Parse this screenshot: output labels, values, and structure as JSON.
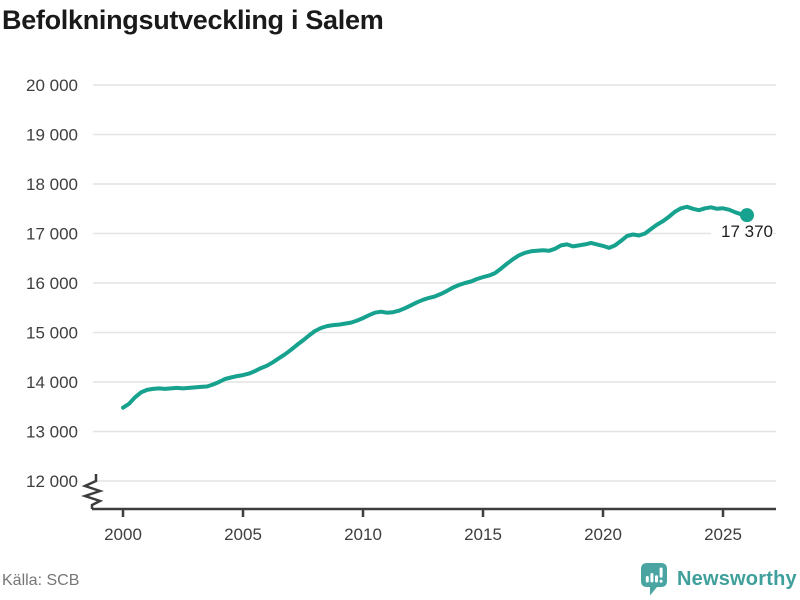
{
  "chart": {
    "title": "Befolkningsutveckling i Salem",
    "end_label": "17 370",
    "source": "Källa: SCB",
    "brand": "Newsworthy",
    "colors": {
      "line": "#16a28e",
      "grid": "#e4e4e4",
      "axis": "#3d3d3d",
      "tick": "#3f3f3f",
      "title": "#1a1a1a",
      "label": "#202020",
      "source": "#767676",
      "brand": "#3f9f9b",
      "logo": "#4aa5a2"
    }
  },
  "chart_data": {
    "type": "line",
    "title": "Befolkningsutveckling i Salem",
    "xlabel": "",
    "ylabel": "",
    "x_range": [
      2000,
      2026
    ],
    "y_range": [
      12000,
      20000
    ],
    "axis_break_at_bottom": true,
    "grid": "horizontal-only",
    "legend": "none",
    "x_ticks": [
      {
        "value": 2000,
        "label": "2000"
      },
      {
        "value": 2005,
        "label": "2005"
      },
      {
        "value": 2010,
        "label": "2010"
      },
      {
        "value": 2015,
        "label": "2015"
      },
      {
        "value": 2020,
        "label": "2020"
      },
      {
        "value": 2025,
        "label": "2025"
      }
    ],
    "y_ticks": [
      {
        "value": 20000,
        "label": "20 000"
      },
      {
        "value": 19000,
        "label": "19 000"
      },
      {
        "value": 18000,
        "label": "18 000"
      },
      {
        "value": 17000,
        "label": "17 000"
      },
      {
        "value": 16000,
        "label": "16 000"
      },
      {
        "value": 15000,
        "label": "15 000"
      },
      {
        "value": 14000,
        "label": "14 000"
      },
      {
        "value": 13000,
        "label": "13 000"
      },
      {
        "value": 12000,
        "label": "12 000"
      }
    ],
    "last_value": 17370,
    "last_value_label": "17 370",
    "series": [
      {
        "name": "Befolkning i Salem",
        "points": [
          [
            2000.0,
            13480
          ],
          [
            2000.25,
            13560
          ],
          [
            2000.5,
            13690
          ],
          [
            2000.75,
            13790
          ],
          [
            2001.0,
            13840
          ],
          [
            2001.25,
            13860
          ],
          [
            2001.5,
            13870
          ],
          [
            2001.75,
            13860
          ],
          [
            2002.0,
            13870
          ],
          [
            2002.25,
            13880
          ],
          [
            2002.5,
            13870
          ],
          [
            2002.75,
            13880
          ],
          [
            2003.0,
            13890
          ],
          [
            2003.25,
            13900
          ],
          [
            2003.5,
            13910
          ],
          [
            2003.75,
            13950
          ],
          [
            2004.0,
            14000
          ],
          [
            2004.25,
            14060
          ],
          [
            2004.5,
            14090
          ],
          [
            2004.75,
            14120
          ],
          [
            2005.0,
            14140
          ],
          [
            2005.25,
            14170
          ],
          [
            2005.5,
            14220
          ],
          [
            2005.75,
            14280
          ],
          [
            2006.0,
            14330
          ],
          [
            2006.25,
            14400
          ],
          [
            2006.5,
            14480
          ],
          [
            2006.75,
            14560
          ],
          [
            2007.0,
            14650
          ],
          [
            2007.25,
            14750
          ],
          [
            2007.5,
            14840
          ],
          [
            2007.75,
            14940
          ],
          [
            2008.0,
            15030
          ],
          [
            2008.25,
            15090
          ],
          [
            2008.5,
            15130
          ],
          [
            2008.75,
            15150
          ],
          [
            2009.0,
            15160
          ],
          [
            2009.25,
            15180
          ],
          [
            2009.5,
            15200
          ],
          [
            2009.75,
            15240
          ],
          [
            2010.0,
            15290
          ],
          [
            2010.25,
            15350
          ],
          [
            2010.5,
            15400
          ],
          [
            2010.75,
            15420
          ],
          [
            2011.0,
            15400
          ],
          [
            2011.25,
            15410
          ],
          [
            2011.5,
            15440
          ],
          [
            2011.75,
            15490
          ],
          [
            2012.0,
            15550
          ],
          [
            2012.25,
            15610
          ],
          [
            2012.5,
            15660
          ],
          [
            2012.75,
            15700
          ],
          [
            2013.0,
            15730
          ],
          [
            2013.25,
            15780
          ],
          [
            2013.5,
            15840
          ],
          [
            2013.75,
            15910
          ],
          [
            2014.0,
            15960
          ],
          [
            2014.25,
            16000
          ],
          [
            2014.5,
            16030
          ],
          [
            2014.75,
            16080
          ],
          [
            2015.0,
            16120
          ],
          [
            2015.25,
            16150
          ],
          [
            2015.5,
            16200
          ],
          [
            2015.75,
            16290
          ],
          [
            2016.0,
            16390
          ],
          [
            2016.25,
            16480
          ],
          [
            2016.5,
            16560
          ],
          [
            2016.75,
            16610
          ],
          [
            2017.0,
            16640
          ],
          [
            2017.25,
            16650
          ],
          [
            2017.5,
            16660
          ],
          [
            2017.75,
            16650
          ],
          [
            2018.0,
            16690
          ],
          [
            2018.25,
            16760
          ],
          [
            2018.5,
            16780
          ],
          [
            2018.75,
            16740
          ],
          [
            2019.0,
            16760
          ],
          [
            2019.25,
            16780
          ],
          [
            2019.5,
            16810
          ],
          [
            2019.75,
            16780
          ],
          [
            2020.0,
            16750
          ],
          [
            2020.25,
            16710
          ],
          [
            2020.5,
            16760
          ],
          [
            2020.75,
            16850
          ],
          [
            2021.0,
            16950
          ],
          [
            2021.25,
            16980
          ],
          [
            2021.5,
            16960
          ],
          [
            2021.75,
            17000
          ],
          [
            2022.0,
            17090
          ],
          [
            2022.25,
            17180
          ],
          [
            2022.5,
            17250
          ],
          [
            2022.75,
            17340
          ],
          [
            2023.0,
            17440
          ],
          [
            2023.25,
            17510
          ],
          [
            2023.5,
            17540
          ],
          [
            2023.75,
            17500
          ],
          [
            2024.0,
            17470
          ],
          [
            2024.25,
            17510
          ],
          [
            2024.5,
            17530
          ],
          [
            2024.75,
            17500
          ],
          [
            2025.0,
            17510
          ],
          [
            2025.25,
            17480
          ],
          [
            2025.5,
            17430
          ],
          [
            2025.75,
            17390
          ],
          [
            2026.0,
            17370
          ]
        ]
      }
    ]
  }
}
